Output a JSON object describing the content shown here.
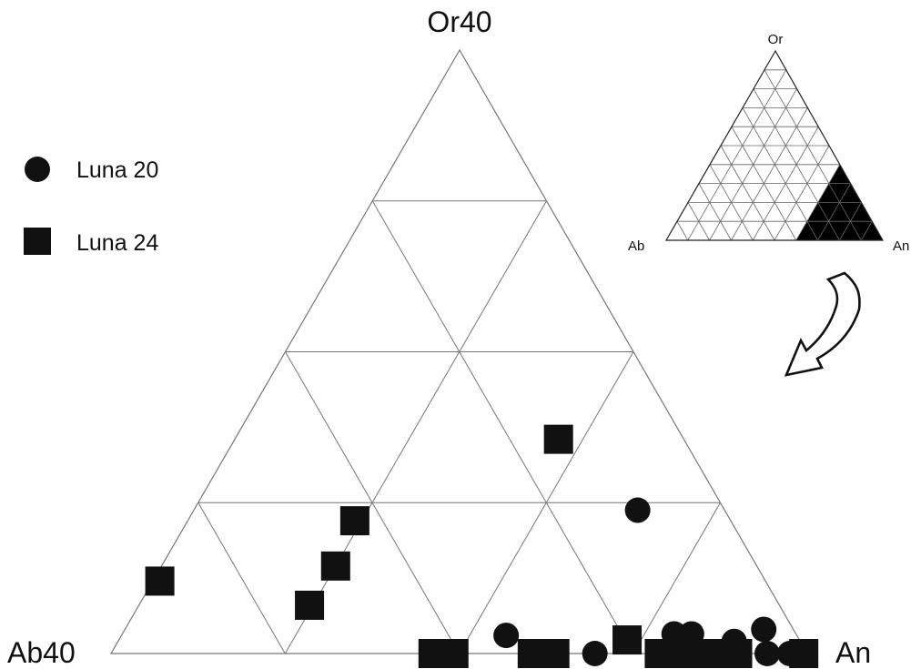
{
  "chart_data": {
    "type": "scatter",
    "subtype": "ternary",
    "corners": {
      "top": "Or40",
      "left": "Ab40",
      "right": "An"
    },
    "grid": true,
    "grid_divisions": 4,
    "legend_placement": "top-left",
    "series": [
      {
        "name": "Luna 20",
        "marker": "circle",
        "points": [
          {
            "Or": 9.5,
            "Ab": 5.0
          },
          {
            "Or": 1.2,
            "Ab": 16.7
          },
          {
            "Or": 0.0,
            "Ab": 12.2
          },
          {
            "Or": 1.3,
            "Ab": 7.0
          },
          {
            "Or": 1.3,
            "Ab": 6.0
          },
          {
            "Or": 0.8,
            "Ab": 3.8
          },
          {
            "Or": 1.6,
            "Ab": 1.7
          },
          {
            "Or": 0.0,
            "Ab": 2.3
          },
          {
            "Or": 0.0,
            "Ab": 1.0
          }
        ]
      },
      {
        "name": "Luna 24",
        "marker": "square",
        "points": [
          {
            "Or": 14.2,
            "Ab": 7.2
          },
          {
            "Or": 4.8,
            "Ab": 34.8
          },
          {
            "Or": 3.2,
            "Ab": 27.0
          },
          {
            "Or": 5.8,
            "Ab": 24.2
          },
          {
            "Or": 8.8,
            "Ab": 21.6
          },
          {
            "Or": 0.0,
            "Ab": 21.5
          },
          {
            "Or": 0.0,
            "Ab": 20.3
          },
          {
            "Or": 0.0,
            "Ab": 15.8
          },
          {
            "Or": 0.0,
            "Ab": 14.5
          },
          {
            "Or": 0.9,
            "Ab": 9.9
          },
          {
            "Or": 0.0,
            "Ab": 8.5
          },
          {
            "Or": 0.0,
            "Ab": 7.0
          },
          {
            "Or": 0.0,
            "Ab": 5.6
          },
          {
            "Or": 0.0,
            "Ab": 4.0
          },
          {
            "Or": 0.0,
            "Ab": 0.2
          }
        ]
      }
    ]
  },
  "inset": {
    "corners": {
      "top": "Or",
      "left": "Ab",
      "right": "An"
    },
    "highlight_color": "#000000",
    "divisions": 10
  },
  "colors": {
    "marker": "#111111",
    "grid": "#777777",
    "arrow": "#111111"
  },
  "icons": {
    "arrow": "curved-arrow-icon"
  }
}
